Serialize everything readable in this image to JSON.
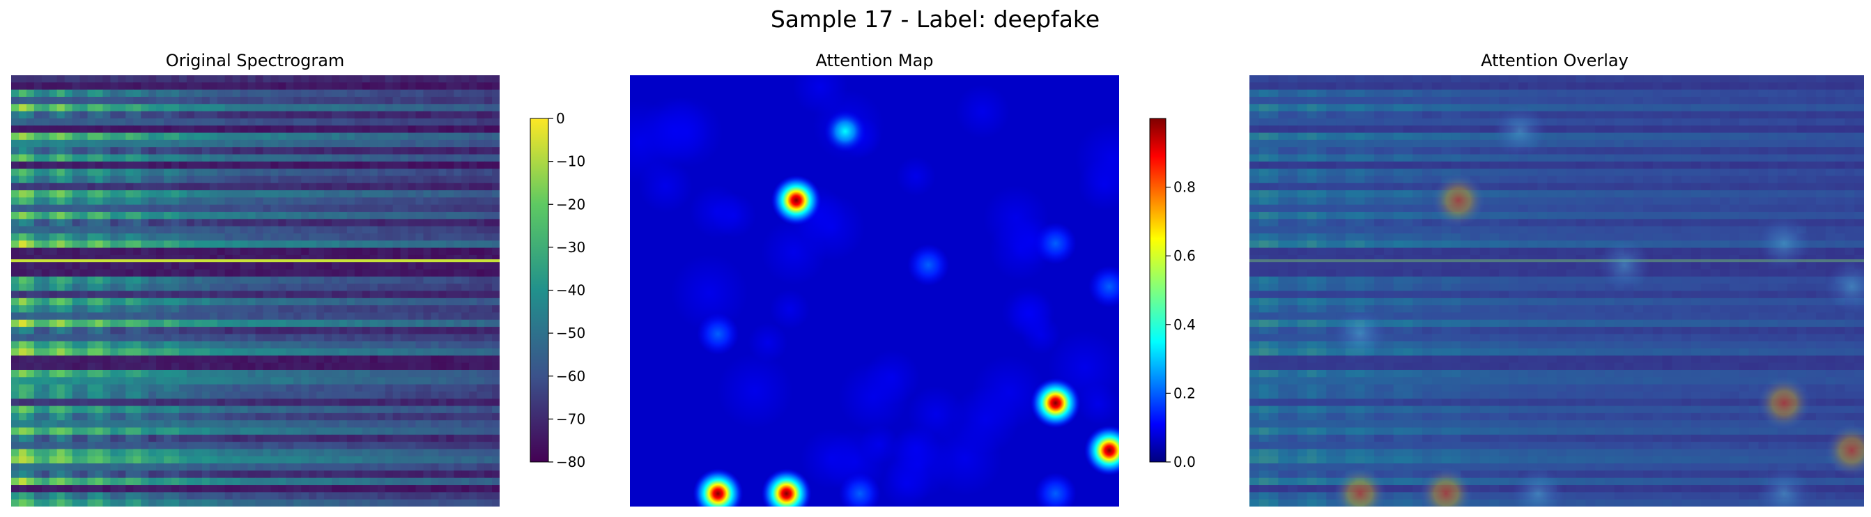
{
  "figure": {
    "suptitle": "Sample 17 - Label: deepfake"
  },
  "chart_data": [
    {
      "type": "heatmap",
      "title": "Original Spectrogram",
      "colormap": "viridis",
      "axes_visible": false,
      "horizontal_line_rows": [
        0.43
      ],
      "colorbar": {
        "ticks": [
          0,
          -10,
          -20,
          -30,
          -40,
          -50,
          -60,
          -70,
          -80
        ],
        "range": [
          -80,
          0
        ]
      }
    },
    {
      "type": "heatmap",
      "title": "Attention Map",
      "colormap": "jet",
      "axes_visible": false,
      "hotspots": [
        {
          "x": 0.44,
          "y": 0.13,
          "intensity": 0.45
        },
        {
          "x": 0.34,
          "y": 0.29,
          "intensity": 0.75
        },
        {
          "x": 0.87,
          "y": 0.39,
          "intensity": 0.28
        },
        {
          "x": 0.61,
          "y": 0.44,
          "intensity": 0.28
        },
        {
          "x": 0.98,
          "y": 0.49,
          "intensity": 0.3
        },
        {
          "x": 0.18,
          "y": 0.6,
          "intensity": 0.28
        },
        {
          "x": 0.87,
          "y": 0.76,
          "intensity": 0.97
        },
        {
          "x": 0.98,
          "y": 0.87,
          "intensity": 0.88
        },
        {
          "x": 0.18,
          "y": 0.97,
          "intensity": 0.75
        },
        {
          "x": 0.32,
          "y": 0.97,
          "intensity": 0.92
        },
        {
          "x": 0.47,
          "y": 0.97,
          "intensity": 0.35
        },
        {
          "x": 0.87,
          "y": 0.97,
          "intensity": 0.35
        }
      ],
      "colorbar": {
        "ticks": [
          0.0,
          0.2,
          0.4,
          0.6,
          0.8
        ],
        "range": [
          0,
          1
        ]
      }
    },
    {
      "type": "heatmap",
      "title": "Attention Overlay",
      "colormap": "jet over viridis",
      "axes_visible": false
    }
  ],
  "colors": {
    "viridis": [
      "#440154",
      "#3b528b",
      "#21918c",
      "#5ec962",
      "#fde725"
    ],
    "jet": [
      "#00007f",
      "#0000ff",
      "#007fff",
      "#00ffff",
      "#7fff7f",
      "#ffff00",
      "#ff7f00",
      "#ff0000",
      "#7f0000"
    ]
  }
}
